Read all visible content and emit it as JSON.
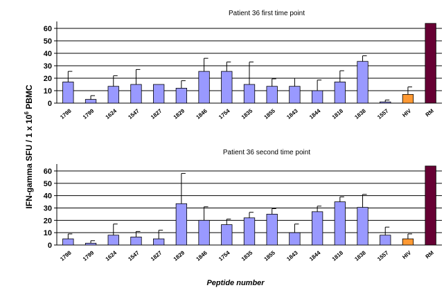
{
  "figure": {
    "ylabel_main": "IFN-gamma SFU / 1 x 10",
    "ylabel_sup": "6",
    "ylabel_tail": " PBMC",
    "xlabel": "Peptide number"
  },
  "colors": {
    "peptide": "#9999ff",
    "hiv": "#ff9933",
    "rm": "#660033",
    "grid": "#000000",
    "error_bar": "#000000"
  },
  "chart_data": [
    {
      "type": "bar",
      "title": "Patient 36 first time point",
      "categories": [
        "1798",
        "1799",
        "1624",
        "1547",
        "1827",
        "1829",
        "1846",
        "1754",
        "1835",
        "1855",
        "1843",
        "1844",
        "1818",
        "1838",
        "1557",
        "HIV",
        "RM"
      ],
      "values": [
        17,
        3,
        13.5,
        15,
        15,
        12,
        25.5,
        25.5,
        15,
        13.5,
        13.5,
        10,
        17,
        33.5,
        1,
        7,
        64
      ],
      "errors": [
        8.5,
        3,
        8.5,
        12,
        0,
        6,
        10.5,
        7.5,
        18,
        6,
        6.5,
        8.5,
        9,
        4.5,
        1.5,
        6,
        0
      ],
      "ylim": [
        0,
        60
      ],
      "yticks": [
        0,
        10,
        20,
        30,
        40,
        50,
        60
      ],
      "grid": true,
      "legend": null
    },
    {
      "type": "bar",
      "title": "Patient 36 second time point",
      "categories": [
        "1798",
        "1799",
        "1624",
        "1547",
        "1827",
        "1829",
        "1846",
        "1754",
        "1835",
        "1855",
        "1843",
        "1844",
        "1818",
        "1838",
        "1557",
        "HIV",
        "RM"
      ],
      "values": [
        5,
        1.5,
        8,
        6.5,
        5,
        33.5,
        20,
        16.5,
        22,
        25,
        10,
        27,
        35,
        30.5,
        8,
        5,
        64
      ],
      "errors": [
        4,
        2,
        9,
        4.5,
        7,
        24.5,
        11,
        4.5,
        4.5,
        4.5,
        7,
        4.5,
        4,
        10.5,
        6.5,
        4,
        0
      ],
      "ylim": [
        0,
        60
      ],
      "yticks": [
        0,
        10,
        20,
        30,
        40,
        50,
        60
      ],
      "grid": true,
      "legend": null
    }
  ]
}
